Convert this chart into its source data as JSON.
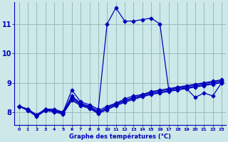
{
  "xlabel": "Graphe des températures (°C)",
  "background_color": "#cce8e8",
  "grid_color": "#99bbbb",
  "line_color": "#0000bb",
  "marker": "D",
  "marker_size": 2.5,
  "xlim": [
    -0.5,
    23.5
  ],
  "ylim": [
    7.55,
    11.75
  ],
  "yticks": [
    8,
    9,
    10,
    11
  ],
  "xtick_labels": [
    "0",
    "1",
    "2",
    "3",
    "4",
    "5",
    "6",
    "7",
    "8",
    "9",
    "10",
    "11",
    "12",
    "13",
    "14",
    "15",
    "16",
    "17",
    "18",
    "19",
    "20",
    "21",
    "22",
    "23"
  ],
  "lines": [
    [
      8.2,
      8.1,
      7.9,
      8.1,
      8.1,
      8.0,
      8.75,
      8.35,
      8.25,
      8.1,
      11.0,
      11.55,
      11.1,
      11.1,
      11.15,
      11.2,
      11.0,
      8.75,
      8.85,
      8.8,
      8.5,
      8.65,
      8.55,
      9.0
    ],
    [
      8.2,
      8.1,
      7.9,
      8.1,
      8.05,
      8.0,
      8.55,
      8.3,
      8.2,
      8.05,
      8.2,
      8.3,
      8.45,
      8.55,
      8.6,
      8.7,
      8.75,
      8.8,
      8.85,
      8.9,
      8.95,
      9.0,
      9.05,
      9.1
    ],
    [
      8.2,
      8.1,
      7.9,
      8.1,
      8.05,
      7.98,
      8.5,
      8.28,
      8.18,
      8.0,
      8.15,
      8.28,
      8.4,
      8.5,
      8.58,
      8.67,
      8.72,
      8.77,
      8.82,
      8.87,
      8.92,
      8.97,
      9.02,
      9.07
    ],
    [
      8.2,
      8.08,
      7.88,
      8.08,
      8.03,
      7.96,
      8.45,
      8.25,
      8.15,
      7.98,
      8.12,
      8.25,
      8.37,
      8.47,
      8.55,
      8.63,
      8.68,
      8.73,
      8.78,
      8.83,
      8.88,
      8.93,
      8.98,
      9.03
    ],
    [
      8.2,
      8.05,
      7.85,
      8.05,
      8.0,
      7.93,
      8.4,
      8.22,
      8.12,
      7.95,
      8.08,
      8.22,
      8.33,
      8.43,
      8.52,
      8.6,
      8.65,
      8.7,
      8.75,
      8.8,
      8.85,
      8.9,
      8.95,
      9.0
    ]
  ]
}
